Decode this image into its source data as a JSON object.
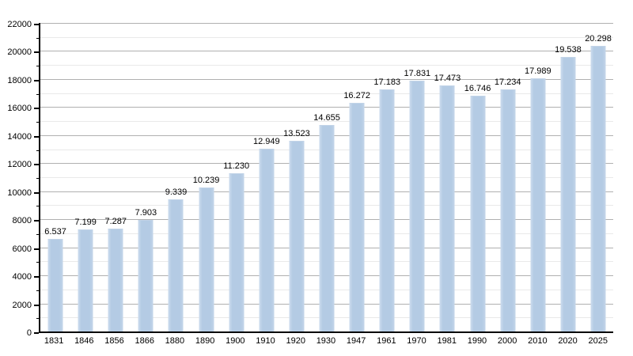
{
  "chart_data": {
    "type": "bar",
    "title": "",
    "xlabel": "",
    "ylabel": "",
    "categories": [
      "1831",
      "1846",
      "1856",
      "1866",
      "1880",
      "1890",
      "1900",
      "1910",
      "1920",
      "1930",
      "1947",
      "1961",
      "1970",
      "1981",
      "1990",
      "2000",
      "2010",
      "2020",
      "2025"
    ],
    "values": [
      6537,
      7199,
      7287,
      7903,
      9339,
      10239,
      11230,
      12949,
      13523,
      14655,
      16272,
      17183,
      17831,
      17473,
      16746,
      17234,
      17989,
      19538,
      20298
    ],
    "value_labels": [
      "6.537",
      "7.199",
      "7.287",
      "7.903",
      "9.339",
      "10.239",
      "11.230",
      "12.949",
      "13.523",
      "14.655",
      "16.272",
      "17.183",
      "17.831",
      "17.473",
      "16.746",
      "17.234",
      "17.989",
      "19.538",
      "20.298"
    ],
    "y_tick_labels": [
      "0",
      "2000",
      "4000",
      "6000",
      "8000",
      "10000",
      "12000",
      "14000",
      "16000",
      "18000",
      "20000",
      "22000"
    ],
    "ylim": [
      0,
      22000
    ],
    "y_major_step": 2000,
    "y_minor_step": 1000,
    "grid": true,
    "legend": "none",
    "colors": {
      "bar_fill": "#b4cbe4",
      "bar_edge_light": "#cddcee",
      "grid_major": "#b0b0b0",
      "grid_minor": "#e9e9e9",
      "axis": "#000000",
      "text": "#000000",
      "background": "#ffffff"
    }
  }
}
